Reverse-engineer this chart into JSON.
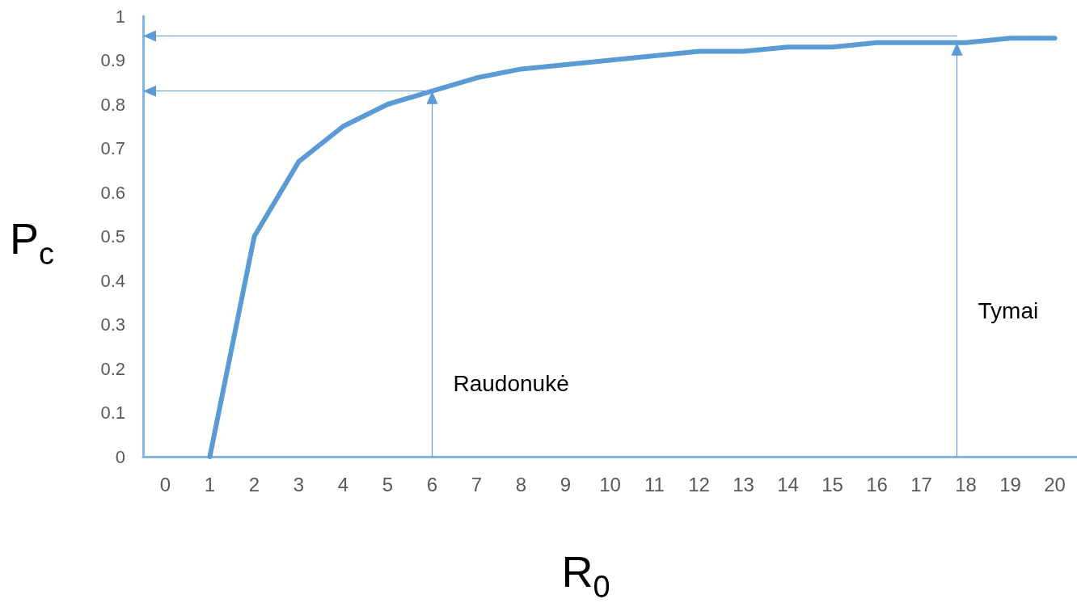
{
  "chart_data": {
    "type": "line",
    "xlabel": "R$_{0}$",
    "ylabel": "P$_{c}$",
    "x": [
      1,
      2,
      3,
      4,
      5,
      6,
      7,
      8,
      9,
      10,
      11,
      12,
      13,
      14,
      15,
      16,
      17,
      18,
      19,
      20
    ],
    "series": [
      {
        "color": "#5b9bd5",
        "values": [
          0,
          0.5,
          0.67,
          0.75,
          0.8,
          0.83,
          0.86,
          0.88,
          0.89,
          0.9,
          0.91,
          0.92,
          0.92,
          0.93,
          0.93,
          0.94,
          0.94,
          0.94,
          0.95,
          0.95
        ]
      }
    ],
    "xlim": [
      -0.5,
      20.5
    ],
    "xticks": [
      0,
      1,
      2,
      3,
      4,
      5,
      6,
      7,
      8,
      9,
      10,
      11,
      12,
      13,
      14,
      15,
      16,
      17,
      18,
      19,
      20
    ],
    "ylim": [
      0,
      1
    ],
    "yticks": [
      0,
      0.1,
      0.2,
      0.3,
      0.4,
      0.5,
      0.6,
      0.7,
      0.8,
      0.9,
      1
    ],
    "ref_lines": [
      {
        "axis": "x",
        "value": 6,
        "label": "Raudonukė"
      },
      {
        "axis": "x",
        "value": 17.8,
        "label": "Tymai"
      },
      {
        "axis": "y",
        "value": 0.83
      },
      {
        "axis": "y",
        "value": 0.955
      }
    ],
    "grid": false,
    "marker": "none",
    "line_style": "solid"
  }
}
